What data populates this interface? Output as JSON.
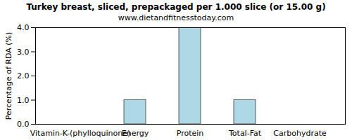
{
  "chart_data": {
    "type": "bar",
    "title": "Turkey breast, sliced, prepackaged per 1.000 slice (or 15.00 g)",
    "subtitle": "www.dietandfitnesstoday.com",
    "y_label": "Percentage of RDA (%)",
    "categories": [
      "Vitamin-K-(phylloquinone)",
      "Energy",
      "Protein",
      "Total-Fat",
      "Carbohydrate"
    ],
    "values": [
      0,
      1,
      4,
      1,
      0
    ],
    "color": "#add8e6",
    "ylim": [
      0,
      4
    ],
    "yticks": [
      {
        "value": 0,
        "label": "0.0"
      },
      {
        "value": 1,
        "label": "1.0"
      },
      {
        "value": 2,
        "label": "2.0"
      },
      {
        "value": 3,
        "label": "3.0"
      },
      {
        "value": 4,
        "label": "4.0"
      }
    ],
    "grid": false
  }
}
